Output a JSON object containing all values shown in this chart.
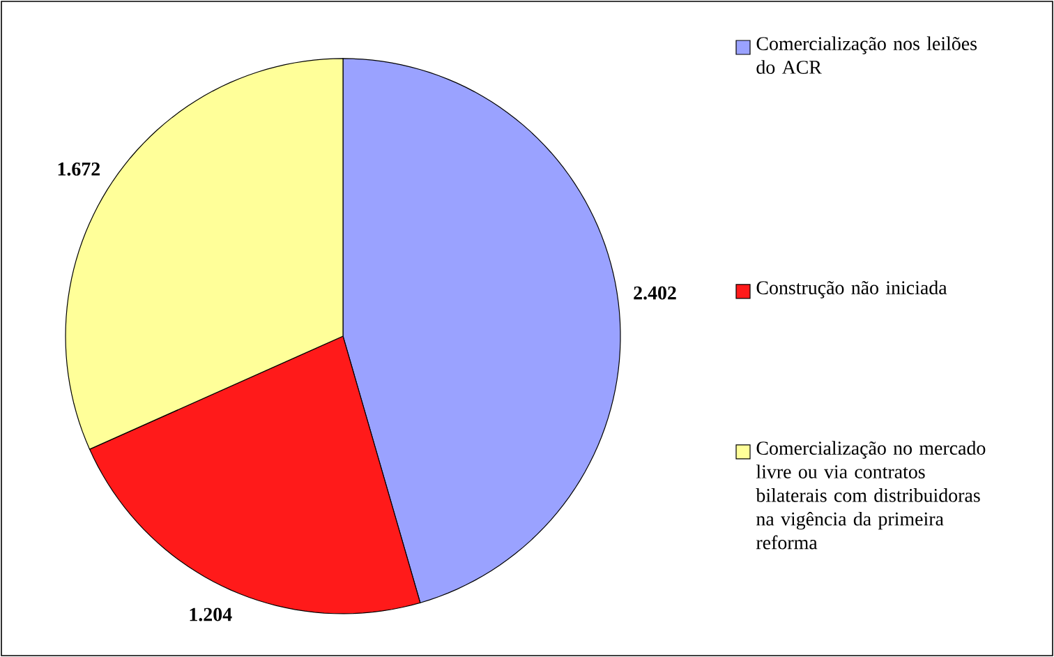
{
  "chart_data": {
    "type": "pie",
    "categories": [
      "Comercialização nos leilões do ACR",
      "Construção não iniciada",
      "Comercialização no mercado livre ou via contratos bilaterais com distribuidoras na vigência da primeira reforma"
    ],
    "values": [
      2402,
      1204,
      1672
    ],
    "value_labels": [
      "2.402",
      "1.204",
      "1.672"
    ],
    "colors": [
      "#9aa2ff",
      "#ff1a1a",
      "#ffff99"
    ],
    "legend": "right"
  }
}
